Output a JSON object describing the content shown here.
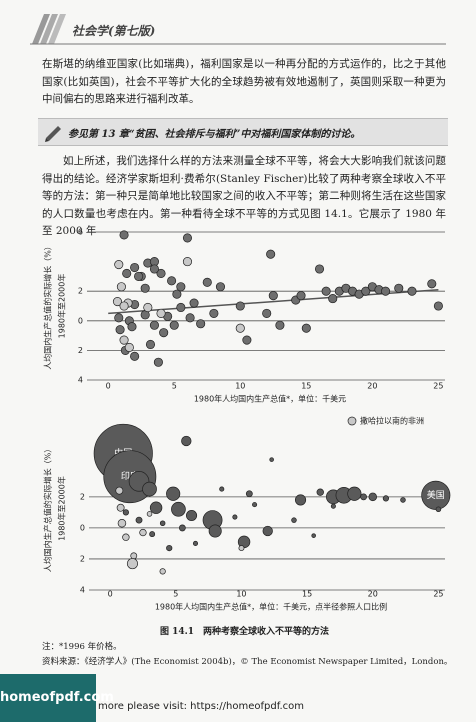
{
  "header": {
    "title": "社会学(第七版)"
  },
  "paragraphs": [
    "在斯堪的纳维亚国家(比如瑞典)，福利国家是以一种再分配的方式运作的，比之于其他国家(比如英国)，社会不平等扩大化的全球趋势被有效地遏制了，英国则采取一种更为中间偏右的思路来进行福利改革。",
    "如上所述，我们选择什么样的方法来测量全球不平等，将会大大影响我们就该问题得出的结论。经济学家斯坦利·费希尔(Stanley Fischer)比较了两种考察全球收入不平等的方法：第一种只是简单地比较国家之间的收入不平等；第二种则将生活在这些国家的人口数量也考虑在内。第一种看待全球不平等的方式见图 14.1。它展示了 1980 年至 2000 年"
  ],
  "note_box": "参见第 13 章“贫困、社会排斥与福利”中对福利国家体制的讨论。",
  "chart_data": [
    {
      "type": "scatter",
      "xlabel": "1980年人均国内生产总值*，单位：千美元",
      "ylabel": [
        "人均国内生产总值的实际增长（%）",
        "1980年至2000年"
      ],
      "xlim": [
        -1,
        25.5
      ],
      "ylim": [
        -4,
        6
      ],
      "xticks": [
        0,
        5,
        10,
        15,
        20,
        25
      ],
      "yticks": [
        6,
        2,
        0,
        {
          "value": -2,
          "label": "2"
        },
        {
          "value": -4,
          "label": "4"
        }
      ],
      "grid": true,
      "series": [
        {
          "color": "#6e6e6e",
          "x": [
            1.2,
            1.4,
            2.0,
            2.5,
            3.0,
            3.5,
            4.0,
            2.8,
            2.0,
            0.8,
            1.6,
            1.8,
            0.9,
            2.0,
            1.3,
            2.8,
            3.5,
            4.5,
            4.2,
            5.0,
            3.2,
            3.8,
            5.2,
            5.5,
            5.5,
            6.0,
            6.5,
            6.2,
            7.0,
            7.5,
            8.0,
            8.5,
            10.0,
            10.5,
            12.0,
            12.5,
            13.0,
            12.3,
            14.2,
            14.6,
            15,
            16,
            16.5,
            17,
            17.5,
            18,
            18.5,
            19,
            19.5,
            20,
            20.5,
            21,
            22,
            23,
            24.5,
            25,
            4.8,
            3.5,
            2.3
          ],
          "values": [
            5.8,
            3.2,
            3.6,
            3.0,
            3.9,
            4.0,
            3.2,
            2.2,
            1.1,
            0.2,
            0.0,
            -0.4,
            -0.6,
            -2.4,
            -2.0,
            0.4,
            -0.3,
            0.3,
            -0.8,
            -0.3,
            -1.6,
            -2.8,
            1.8,
            0.9,
            2.3,
            5.6,
            1.2,
            0.2,
            -0.2,
            2.6,
            0.5,
            2.3,
            1.0,
            -1.3,
            0.5,
            1.7,
            -0.3,
            4.5,
            1.4,
            1.7,
            -0.5,
            3.5,
            2.0,
            1.5,
            2.0,
            2.2,
            2.0,
            1.8,
            2.0,
            2.3,
            2.1,
            2.0,
            2.2,
            2.0,
            2.5,
            1.0,
            2.7,
            3.5,
            3.0
          ]
        },
        {
          "color": "#c8c8c8",
          "x": [
            0.8,
            1.0,
            1.5,
            0.7,
            1.2,
            1.6,
            3.0,
            4.0,
            10.0,
            6.0,
            1.2
          ],
          "values": [
            3.8,
            2.3,
            1.2,
            1.3,
            -1.3,
            -1.8,
            0.9,
            0.5,
            -0.5,
            4.0,
            1.0
          ]
        }
      ],
      "trend": {
        "color": "#555555",
        "x": [
          0,
          25
        ],
        "values": [
          0.5,
          2.1
        ]
      }
    },
    {
      "type": "bubble",
      "xlabel": "1980年人均国内生产总值*，单位：千美元，点半径参照人口比例",
      "ylabel": [
        "人均国内生产总值的实际增长（%）",
        "1980年至2000年"
      ],
      "xlim": [
        -1,
        25.5
      ],
      "ylim": [
        -4,
        6.5
      ],
      "xticks": [
        0,
        5,
        10,
        15,
        20,
        25
      ],
      "yticks": [
        2,
        0,
        {
          "value": -2,
          "label": "2"
        },
        {
          "value": -4,
          "label": "4"
        }
      ],
      "grid": true,
      "legend": "top-right",
      "series": [
        {
          "color": "#5a5a5a",
          "x": [
            1.0,
            1.5,
            24.8,
            2.2,
            3.0,
            3.5,
            4.8,
            5.8,
            5.2,
            6.2,
            7.8,
            8.0,
            10.2,
            12.0,
            10.6,
            14.5,
            16,
            17,
            17.8,
            18.6,
            19.3,
            20,
            21,
            22.3,
            25,
            12.3,
            8.5,
            5.5,
            4.0,
            3.2,
            2.2,
            1.2,
            4.5,
            9.5,
            6.5,
            11,
            14,
            17,
            15.5
          ],
          "values": [
            4.8,
            3.3,
            2.1,
            3.0,
            2.5,
            1.3,
            2.2,
            5.6,
            1.2,
            0.8,
            0.5,
            -0.2,
            -0.9,
            -0.2,
            2.2,
            1.8,
            2.3,
            2.0,
            2.1,
            2.2,
            2.0,
            2.0,
            1.9,
            1.8,
            1.2,
            4.4,
            2.5,
            0.0,
            0.3,
            -0.4,
            0.5,
            1.0,
            -1.3,
            0.7,
            -1.0,
            1.5,
            0.5,
            1.4,
            -0.5
          ],
          "sizes": [
            1260,
            1000,
            280,
            130,
            60,
            40,
            55,
            25,
            60,
            30,
            120,
            45,
            40,
            25,
            8,
            30,
            10,
            60,
            80,
            55,
            8,
            15,
            6,
            4,
            4,
            2,
            3,
            8,
            4,
            5,
            8,
            6,
            6,
            3,
            3,
            3,
            4,
            3,
            2
          ],
          "point_labels": [
            "中国",
            "印度",
            "美国",
            null,
            null,
            null,
            null,
            null,
            null,
            null,
            null,
            null,
            null,
            null,
            null,
            null,
            null,
            null,
            null,
            null,
            null,
            null,
            null,
            null,
            null,
            null,
            null,
            null,
            null,
            null,
            null,
            null,
            null,
            null,
            null,
            null,
            null,
            null,
            null
          ]
        },
        {
          "name": "撒哈拉以南的非洲",
          "color": "#c8c8c8",
          "x": [
            0.8,
            1.2,
            1.8,
            1.7,
            0.9,
            2.5,
            4.0,
            10,
            3.0,
            0.7
          ],
          "values": [
            1.3,
            -0.6,
            -1.8,
            -2.3,
            0.3,
            -0.3,
            -2.8,
            -1.3,
            0.9,
            2.4
          ],
          "sizes": [
            12,
            10,
            8,
            30,
            15,
            10,
            6,
            5,
            4,
            12
          ]
        }
      ]
    }
  ],
  "caption": "图 14.1　两种考察全球收入不平等的方法",
  "notes": [
    "注：*1996 年价格。",
    "资料来源：《经济学人》(The Economist 2004b)，© The Economist Newspaper Limited，London。"
  ],
  "footer": {
    "logo": "homeofpdf.com",
    "text": "more please visit: https://homeofpdf.com"
  }
}
